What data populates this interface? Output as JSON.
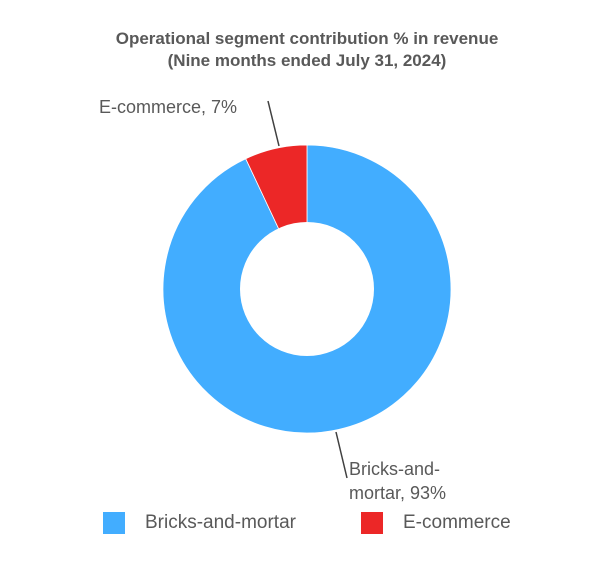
{
  "chart_data": {
    "type": "pie",
    "variant": "donut",
    "title": "Operational segment contribution % in revenue",
    "subtitle": "(Nine months ended July 31, 2024)",
    "categories": [
      "Bricks-and-mortar",
      "E-commerce"
    ],
    "values": [
      93,
      7
    ],
    "unit": "%",
    "colors": [
      "#42ADFF",
      "#EC2727"
    ],
    "data_labels": [
      "Bricks-and-mortar, 93%",
      "E-commerce, 7%"
    ],
    "legend_position": "bottom",
    "start_angle_deg": 0,
    "direction": "clockwise"
  },
  "title": {
    "line1": "Operational segment contribution % in revenue",
    "line2": "(Nine months ended July 31, 2024)"
  },
  "labels": {
    "ecommerce": "E-commerce, 7%",
    "bricks_line1": "Bricks-and-",
    "bricks_line2": "mortar, 93%"
  },
  "legend": {
    "items": [
      {
        "label": "Bricks-and-mortar",
        "color": "#42ADFF"
      },
      {
        "label": "E-commerce",
        "color": "#EC2727"
      }
    ]
  }
}
